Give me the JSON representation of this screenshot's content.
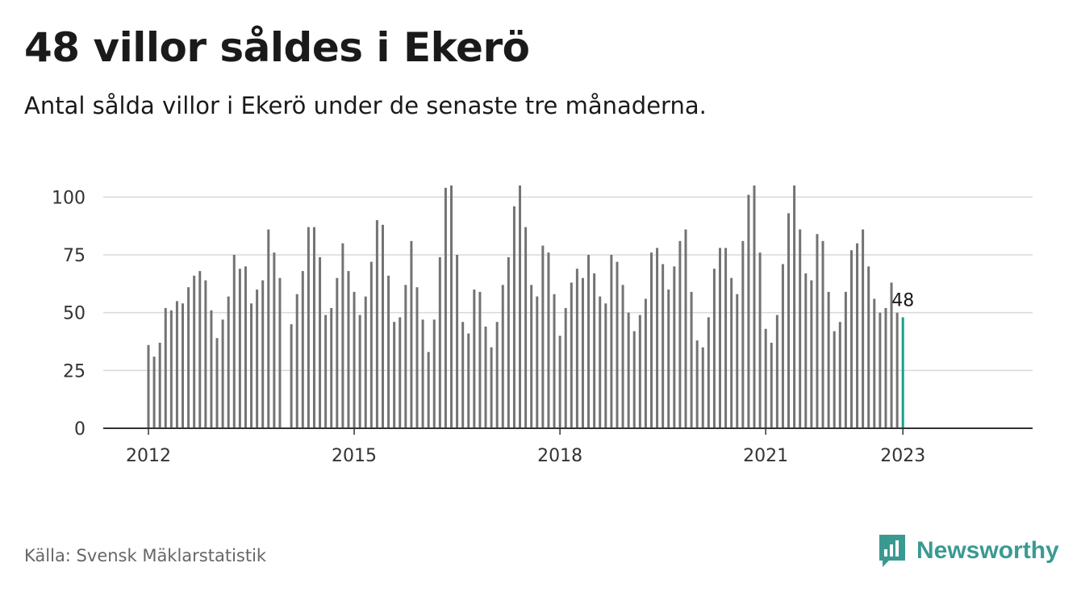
{
  "title": "48 villor såldes i Ekerö",
  "subtitle": "Antal sålda villor i Ekerö under de senaste tre månaderna.",
  "source": "Källa: Svensk Mäklarstatistik",
  "brand": {
    "name": "Newsworthy",
    "icon": "newsworthy-logo-icon",
    "color": "#3a9a92"
  },
  "colors": {
    "bar": "#737373",
    "highlight": "#1a9e8f",
    "grid": "#d9d9d9",
    "axis": "#333333"
  },
  "chart_data": {
    "type": "bar",
    "x_start": "2012-01",
    "x_ticks": [
      "2012",
      "2015",
      "2018",
      "2021",
      "2023"
    ],
    "y_ticks": [
      "0",
      "25",
      "50",
      "75",
      "100"
    ],
    "ylim": [
      0,
      105
    ],
    "grid": true,
    "highlight_label": "48",
    "values": [
      36,
      31,
      37,
      52,
      51,
      55,
      54,
      61,
      66,
      68,
      64,
      51,
      39,
      47,
      57,
      75,
      69,
      70,
      54,
      60,
      64,
      86,
      76,
      65,
      null,
      45,
      58,
      68,
      87,
      87,
      74,
      49,
      52,
      65,
      80,
      68,
      59,
      49,
      57,
      72,
      90,
      88,
      66,
      46,
      48,
      62,
      81,
      61,
      47,
      33,
      47,
      74,
      104,
      105,
      75,
      46,
      41,
      60,
      59,
      44,
      35,
      46,
      62,
      74,
      96,
      105,
      87,
      62,
      57,
      79,
      76,
      58,
      40,
      52,
      63,
      69,
      65,
      75,
      67,
      57,
      54,
      75,
      72,
      62,
      50,
      42,
      49,
      56,
      76,
      78,
      71,
      60,
      70,
      81,
      86,
      59,
      38,
      35,
      48,
      69,
      78,
      78,
      65,
      58,
      81,
      101,
      105,
      76,
      43,
      37,
      49,
      71,
      93,
      105,
      86,
      67,
      64,
      84,
      81,
      59,
      42,
      46,
      59,
      77,
      80,
      86,
      70,
      56,
      50,
      52,
      63,
      50,
      48
    ]
  }
}
